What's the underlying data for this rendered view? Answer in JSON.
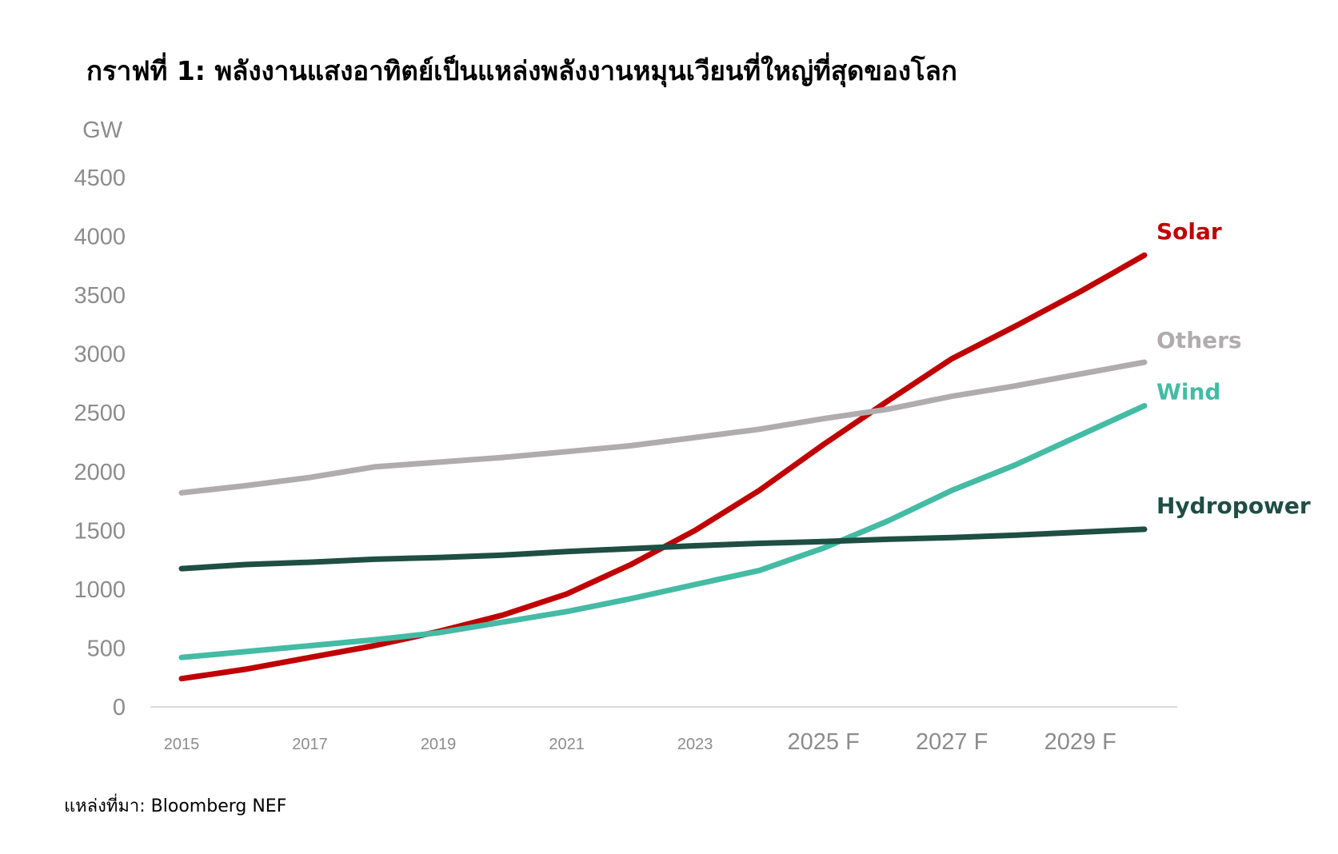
{
  "page": {
    "title": "กราฟที่ 1: พลังงานแสงอาทิตย์เป็นแหล่งพลังงานหมุนเวียนที่ใหญ่ที่สุดของโลก",
    "source": "แหล่งที่มา: Bloomberg NEF"
  },
  "chart_data": {
    "type": "line",
    "title": "กราฟที่ 1: พลังงานแสงอาทิตย์เป็นแหล่งพลังงานหมุนเวียนที่ใหญ่ที่สุดของโลก",
    "ylabel": "GW",
    "xlabel": "",
    "ylim": [
      0,
      4500
    ],
    "yticks": [
      0,
      500,
      1000,
      1500,
      2000,
      2500,
      3000,
      3500,
      4000,
      4500
    ],
    "x": [
      2015,
      2016,
      2017,
      2018,
      2019,
      2020,
      2021,
      2022,
      2023,
      2024,
      2025,
      2026,
      2027,
      2028,
      2029,
      2030
    ],
    "xticks": [
      {
        "x": 2015,
        "label": "2015",
        "style": "small"
      },
      {
        "x": 2017,
        "label": "2017",
        "style": "small"
      },
      {
        "x": 2019,
        "label": "2019",
        "style": "small"
      },
      {
        "x": 2021,
        "label": "2021",
        "style": "small"
      },
      {
        "x": 2023,
        "label": "2023",
        "style": "small"
      },
      {
        "x": 2025,
        "label": "2025 F",
        "style": "large"
      },
      {
        "x": 2027,
        "label": "2027 F",
        "style": "large"
      },
      {
        "x": 2029,
        "label": "2029 F",
        "style": "large"
      }
    ],
    "grid": false,
    "legend": "direct labels at line ends (right)",
    "series": [
      {
        "name": "Solar",
        "color": "#c00000",
        "values": [
          240,
          320,
          420,
          520,
          640,
          780,
          960,
          1210,
          1500,
          1840,
          2230,
          2600,
          2960,
          3240,
          3530,
          3840
        ]
      },
      {
        "name": "Others",
        "color": "#b0acad",
        "values": [
          1820,
          1880,
          1950,
          2040,
          2080,
          2120,
          2170,
          2220,
          2290,
          2360,
          2450,
          2530,
          2640,
          2730,
          2830,
          2930
        ]
      },
      {
        "name": "Wind",
        "color": "#44bba4",
        "values": [
          420,
          470,
          520,
          570,
          630,
          720,
          810,
          920,
          1040,
          1160,
          1350,
          1580,
          1840,
          2060,
          2310,
          2560
        ]
      },
      {
        "name": "Hydropower",
        "color": "#1f4e43",
        "values": [
          1175,
          1210,
          1230,
          1255,
          1270,
          1290,
          1320,
          1345,
          1370,
          1390,
          1405,
          1425,
          1440,
          1460,
          1485,
          1510
        ]
      }
    ]
  }
}
